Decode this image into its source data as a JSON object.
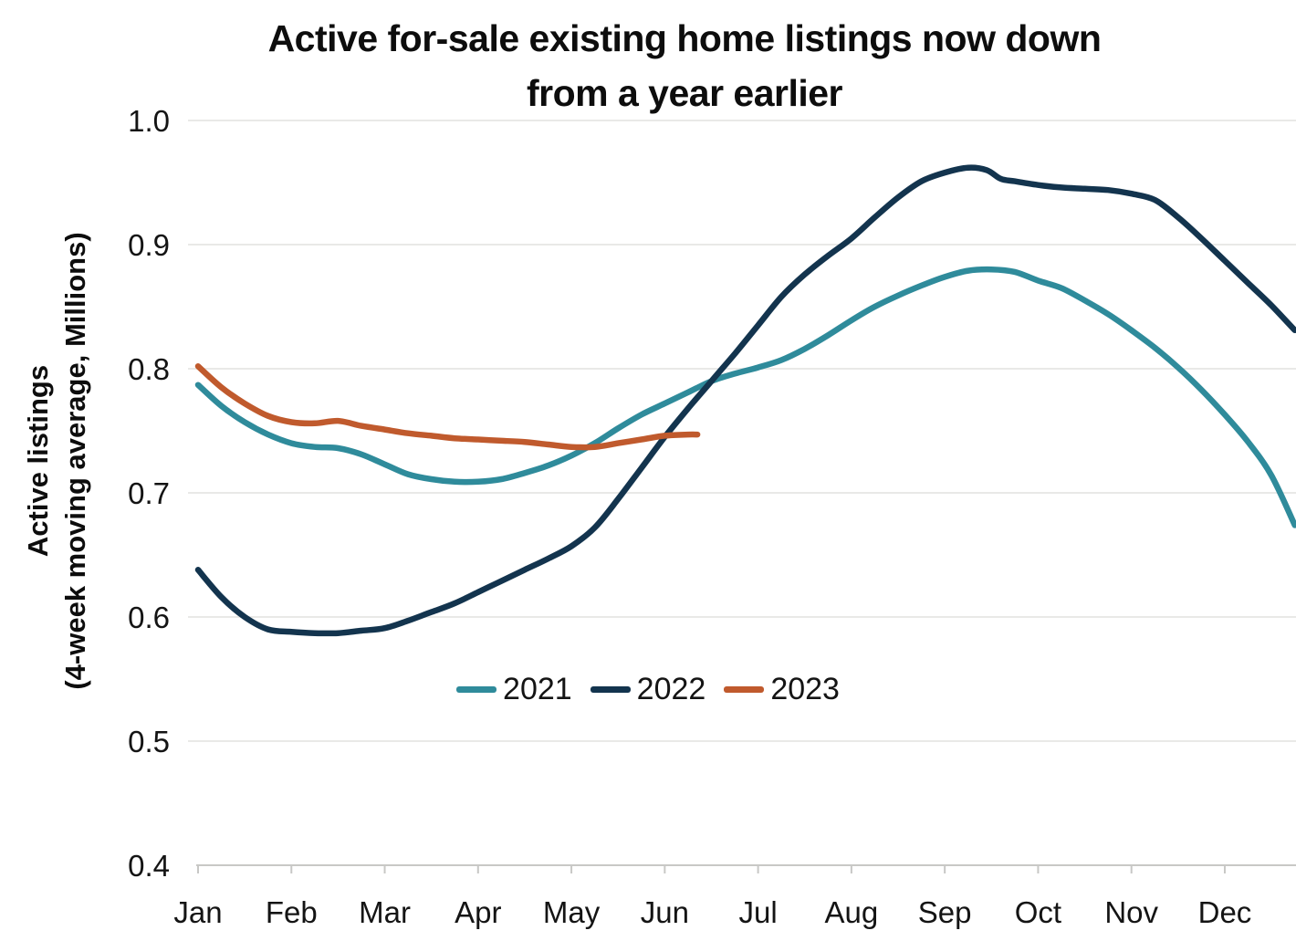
{
  "title": {
    "line1": "Active for-sale existing home listings now down",
    "line2": "from a year earlier"
  },
  "y_axis": {
    "title_line1": "Active listings",
    "title_line2": "(4-week moving average, Millions)",
    "tick_labels": [
      "1.0",
      "0.9",
      "0.8",
      "0.7",
      "0.6",
      "0.5",
      "0.4"
    ]
  },
  "x_axis": {
    "tick_labels": [
      "Jan",
      "Feb",
      "Mar",
      "Apr",
      "May",
      "Jun",
      "Jul",
      "Aug",
      "Sep",
      "Oct",
      "Nov",
      "Dec"
    ]
  },
  "colors": {
    "grid": "#e9e9e7",
    "axis": "#c8c8c6",
    "text": "#141414"
  },
  "chart_data": {
    "type": "line",
    "title": "Active for-sale existing home listings now down from a year earlier",
    "xlabel": "",
    "ylabel": "Active listings (4-week moving average, Millions)",
    "ylim": [
      0.4,
      1.0
    ],
    "y_ticks": [
      1.0,
      0.9,
      0.8,
      0.7,
      0.6,
      0.5,
      0.4
    ],
    "x_unit": "months, 0 = Jan 1",
    "xlim": [
      0,
      12
    ],
    "x_categories": [
      "Jan",
      "Feb",
      "Mar",
      "Apr",
      "May",
      "Jun",
      "Jul",
      "Aug",
      "Sep",
      "Oct",
      "Nov",
      "Dec"
    ],
    "grid": "horizontal",
    "legend_position": "inside-center-lower",
    "series": [
      {
        "name": "2021",
        "color": "#2F8B9B",
        "points": [
          [
            0,
            0.787
          ],
          [
            0.25,
            0.77
          ],
          [
            0.5,
            0.757
          ],
          [
            0.75,
            0.747
          ],
          [
            1,
            0.74
          ],
          [
            1.25,
            0.737
          ],
          [
            1.5,
            0.736
          ],
          [
            1.75,
            0.731
          ],
          [
            2,
            0.723
          ],
          [
            2.25,
            0.715
          ],
          [
            2.5,
            0.711
          ],
          [
            2.75,
            0.709
          ],
          [
            3,
            0.709
          ],
          [
            3.25,
            0.711
          ],
          [
            3.5,
            0.716
          ],
          [
            3.75,
            0.722
          ],
          [
            4,
            0.73
          ],
          [
            4.25,
            0.74
          ],
          [
            4.5,
            0.752
          ],
          [
            4.75,
            0.763
          ],
          [
            5,
            0.772
          ],
          [
            5.25,
            0.781
          ],
          [
            5.5,
            0.79
          ],
          [
            5.75,
            0.796
          ],
          [
            6,
            0.801
          ],
          [
            6.25,
            0.807
          ],
          [
            6.5,
            0.816
          ],
          [
            6.75,
            0.827
          ],
          [
            7,
            0.839
          ],
          [
            7.25,
            0.85
          ],
          [
            7.5,
            0.859
          ],
          [
            7.75,
            0.867
          ],
          [
            8,
            0.874
          ],
          [
            8.25,
            0.879
          ],
          [
            8.5,
            0.88
          ],
          [
            8.75,
            0.878
          ],
          [
            9,
            0.871
          ],
          [
            9.25,
            0.865
          ],
          [
            9.5,
            0.855
          ],
          [
            9.75,
            0.844
          ],
          [
            10,
            0.831
          ],
          [
            10.25,
            0.817
          ],
          [
            10.5,
            0.801
          ],
          [
            10.75,
            0.783
          ],
          [
            11,
            0.763
          ],
          [
            11.25,
            0.741
          ],
          [
            11.5,
            0.714
          ],
          [
            11.75,
            0.674
          ]
        ]
      },
      {
        "name": "2022",
        "color": "#13344E",
        "points": [
          [
            0,
            0.638
          ],
          [
            0.25,
            0.616
          ],
          [
            0.5,
            0.6
          ],
          [
            0.75,
            0.59
          ],
          [
            1,
            0.588
          ],
          [
            1.25,
            0.587
          ],
          [
            1.5,
            0.587
          ],
          [
            1.75,
            0.589
          ],
          [
            2,
            0.591
          ],
          [
            2.25,
            0.597
          ],
          [
            2.5,
            0.604
          ],
          [
            2.75,
            0.611
          ],
          [
            3,
            0.62
          ],
          [
            3.25,
            0.629
          ],
          [
            3.5,
            0.638
          ],
          [
            3.75,
            0.647
          ],
          [
            4,
            0.657
          ],
          [
            4.25,
            0.672
          ],
          [
            4.5,
            0.695
          ],
          [
            4.75,
            0.72
          ],
          [
            5,
            0.745
          ],
          [
            5.25,
            0.768
          ],
          [
            5.5,
            0.79
          ],
          [
            5.75,
            0.812
          ],
          [
            6,
            0.835
          ],
          [
            6.25,
            0.858
          ],
          [
            6.5,
            0.876
          ],
          [
            6.75,
            0.891
          ],
          [
            7,
            0.905
          ],
          [
            7.25,
            0.922
          ],
          [
            7.5,
            0.938
          ],
          [
            7.75,
            0.951
          ],
          [
            8,
            0.958
          ],
          [
            8.25,
            0.962
          ],
          [
            8.45,
            0.96
          ],
          [
            8.6,
            0.953
          ],
          [
            8.75,
            0.951
          ],
          [
            9,
            0.948
          ],
          [
            9.25,
            0.946
          ],
          [
            9.5,
            0.945
          ],
          [
            9.75,
            0.944
          ],
          [
            10,
            0.941
          ],
          [
            10.25,
            0.936
          ],
          [
            10.5,
            0.922
          ],
          [
            10.75,
            0.905
          ],
          [
            11,
            0.887
          ],
          [
            11.25,
            0.869
          ],
          [
            11.5,
            0.851
          ],
          [
            11.75,
            0.831
          ]
        ]
      },
      {
        "name": "2023",
        "color": "#C05A2D",
        "points": [
          [
            0,
            0.802
          ],
          [
            0.25,
            0.785
          ],
          [
            0.5,
            0.772
          ],
          [
            0.75,
            0.762
          ],
          [
            1,
            0.757
          ],
          [
            1.25,
            0.756
          ],
          [
            1.5,
            0.758
          ],
          [
            1.75,
            0.754
          ],
          [
            2,
            0.751
          ],
          [
            2.25,
            0.748
          ],
          [
            2.5,
            0.746
          ],
          [
            2.75,
            0.744
          ],
          [
            3,
            0.743
          ],
          [
            3.25,
            0.742
          ],
          [
            3.5,
            0.741
          ],
          [
            3.75,
            0.739
          ],
          [
            4,
            0.737
          ],
          [
            4.25,
            0.737
          ],
          [
            4.5,
            0.74
          ],
          [
            4.75,
            0.743
          ],
          [
            5,
            0.746
          ],
          [
            5.25,
            0.747
          ],
          [
            5.35,
            0.747
          ]
        ]
      }
    ]
  }
}
